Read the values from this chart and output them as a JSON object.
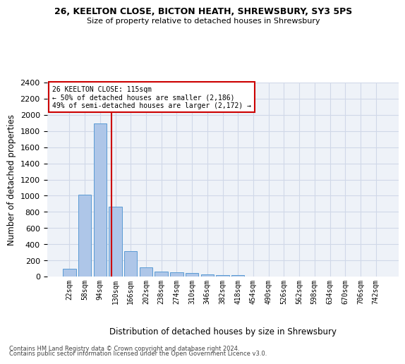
{
  "title1": "26, KEELTON CLOSE, BICTON HEATH, SHREWSBURY, SY3 5PS",
  "title2": "Size of property relative to detached houses in Shrewsbury",
  "xlabel": "Distribution of detached houses by size in Shrewsbury",
  "ylabel": "Number of detached properties",
  "bar_labels": [
    "22sqm",
    "58sqm",
    "94sqm",
    "130sqm",
    "166sqm",
    "202sqm",
    "238sqm",
    "274sqm",
    "310sqm",
    "346sqm",
    "382sqm",
    "418sqm",
    "454sqm",
    "490sqm",
    "526sqm",
    "562sqm",
    "598sqm",
    "634sqm",
    "670sqm",
    "706sqm",
    "742sqm"
  ],
  "bar_values": [
    95,
    1010,
    1890,
    860,
    315,
    115,
    60,
    50,
    45,
    25,
    20,
    20,
    0,
    0,
    0,
    0,
    0,
    0,
    0,
    0,
    0
  ],
  "bar_color": "#aec6e8",
  "bar_edge_color": "#5a9bd4",
  "grid_color": "#d0d8e8",
  "bg_color": "#eef2f8",
  "annotation_box_color": "#cc0000",
  "vline_color": "#cc0000",
  "vline_x": 2.75,
  "annotation_line1": "26 KEELTON CLOSE: 115sqm",
  "annotation_line2": "← 50% of detached houses are smaller (2,186)",
  "annotation_line3": "49% of semi-detached houses are larger (2,172) →",
  "footer1": "Contains HM Land Registry data © Crown copyright and database right 2024.",
  "footer2": "Contains public sector information licensed under the Open Government Licence v3.0.",
  "ylim": [
    0,
    2400
  ],
  "yticks": [
    0,
    200,
    400,
    600,
    800,
    1000,
    1200,
    1400,
    1600,
    1800,
    2000,
    2200,
    2400
  ]
}
